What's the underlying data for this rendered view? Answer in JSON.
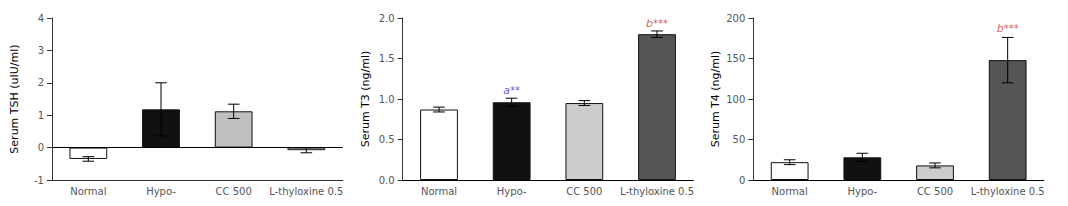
{
  "chart_data": [
    {
      "type": "bar",
      "ylabel": "Serum TSH (uIU/ml)",
      "categories": [
        "Normal",
        "Hypo-",
        "CC 500",
        "L-thyloxine 0.5"
      ],
      "values": [
        -0.35,
        1.18,
        1.12,
        -0.08
      ],
      "errors": [
        0.07,
        0.82,
        0.22,
        0.08
      ],
      "colors": [
        "#ffffff",
        "#111111",
        "#c0c0c0",
        "#ffffff"
      ],
      "ylim": [
        -1,
        4
      ],
      "yticks": [
        -1,
        0,
        1,
        2,
        3,
        4
      ],
      "grid": false
    },
    {
      "type": "bar",
      "ylabel": "Serum T3 (ng/ml)",
      "categories": [
        "Normal",
        "Hypo-",
        "CC 500",
        "L-thyloxine 0.5"
      ],
      "values": [
        0.87,
        0.96,
        0.95,
        1.8
      ],
      "errors": [
        0.03,
        0.05,
        0.03,
        0.04
      ],
      "colors": [
        "#ffffff",
        "#111111",
        "#cccccc",
        "#555555"
      ],
      "ylim": [
        0.0,
        2.0
      ],
      "yticks": [
        {
          "value": 0.0,
          "label": "0.0"
        },
        {
          "value": 0.5,
          "label": "0.5"
        },
        {
          "value": 1.0,
          "label": "1.0"
        },
        {
          "value": 1.5,
          "label": "1.5"
        },
        {
          "value": 2.0,
          "label": "2.0"
        }
      ],
      "grid": false,
      "annotations": [
        {
          "text": "a**",
          "category": "Hypo-",
          "y": 1.04,
          "color": "#3333cc"
        },
        {
          "text": "b***",
          "category": "L-thyloxine 0.5",
          "y": 1.87,
          "color": "#cc3333"
        }
      ]
    },
    {
      "type": "bar",
      "ylabel": "Serum T4 (ng/ml)",
      "categories": [
        "Normal",
        "Hypo-",
        "CC 500",
        "L-thyloxine 0.5"
      ],
      "values": [
        22,
        28,
        18,
        148
      ],
      "errors": [
        3,
        5,
        3,
        28
      ],
      "colors": [
        "#ffffff",
        "#111111",
        "#cccccc",
        "#555555"
      ],
      "ylim": [
        0,
        200
      ],
      "yticks": [
        0,
        50,
        100,
        150,
        200
      ],
      "grid": false,
      "annotations": [
        {
          "text": "b***",
          "category": "L-thyloxine 0.5",
          "y": 180,
          "color": "#cc3333"
        }
      ]
    }
  ]
}
